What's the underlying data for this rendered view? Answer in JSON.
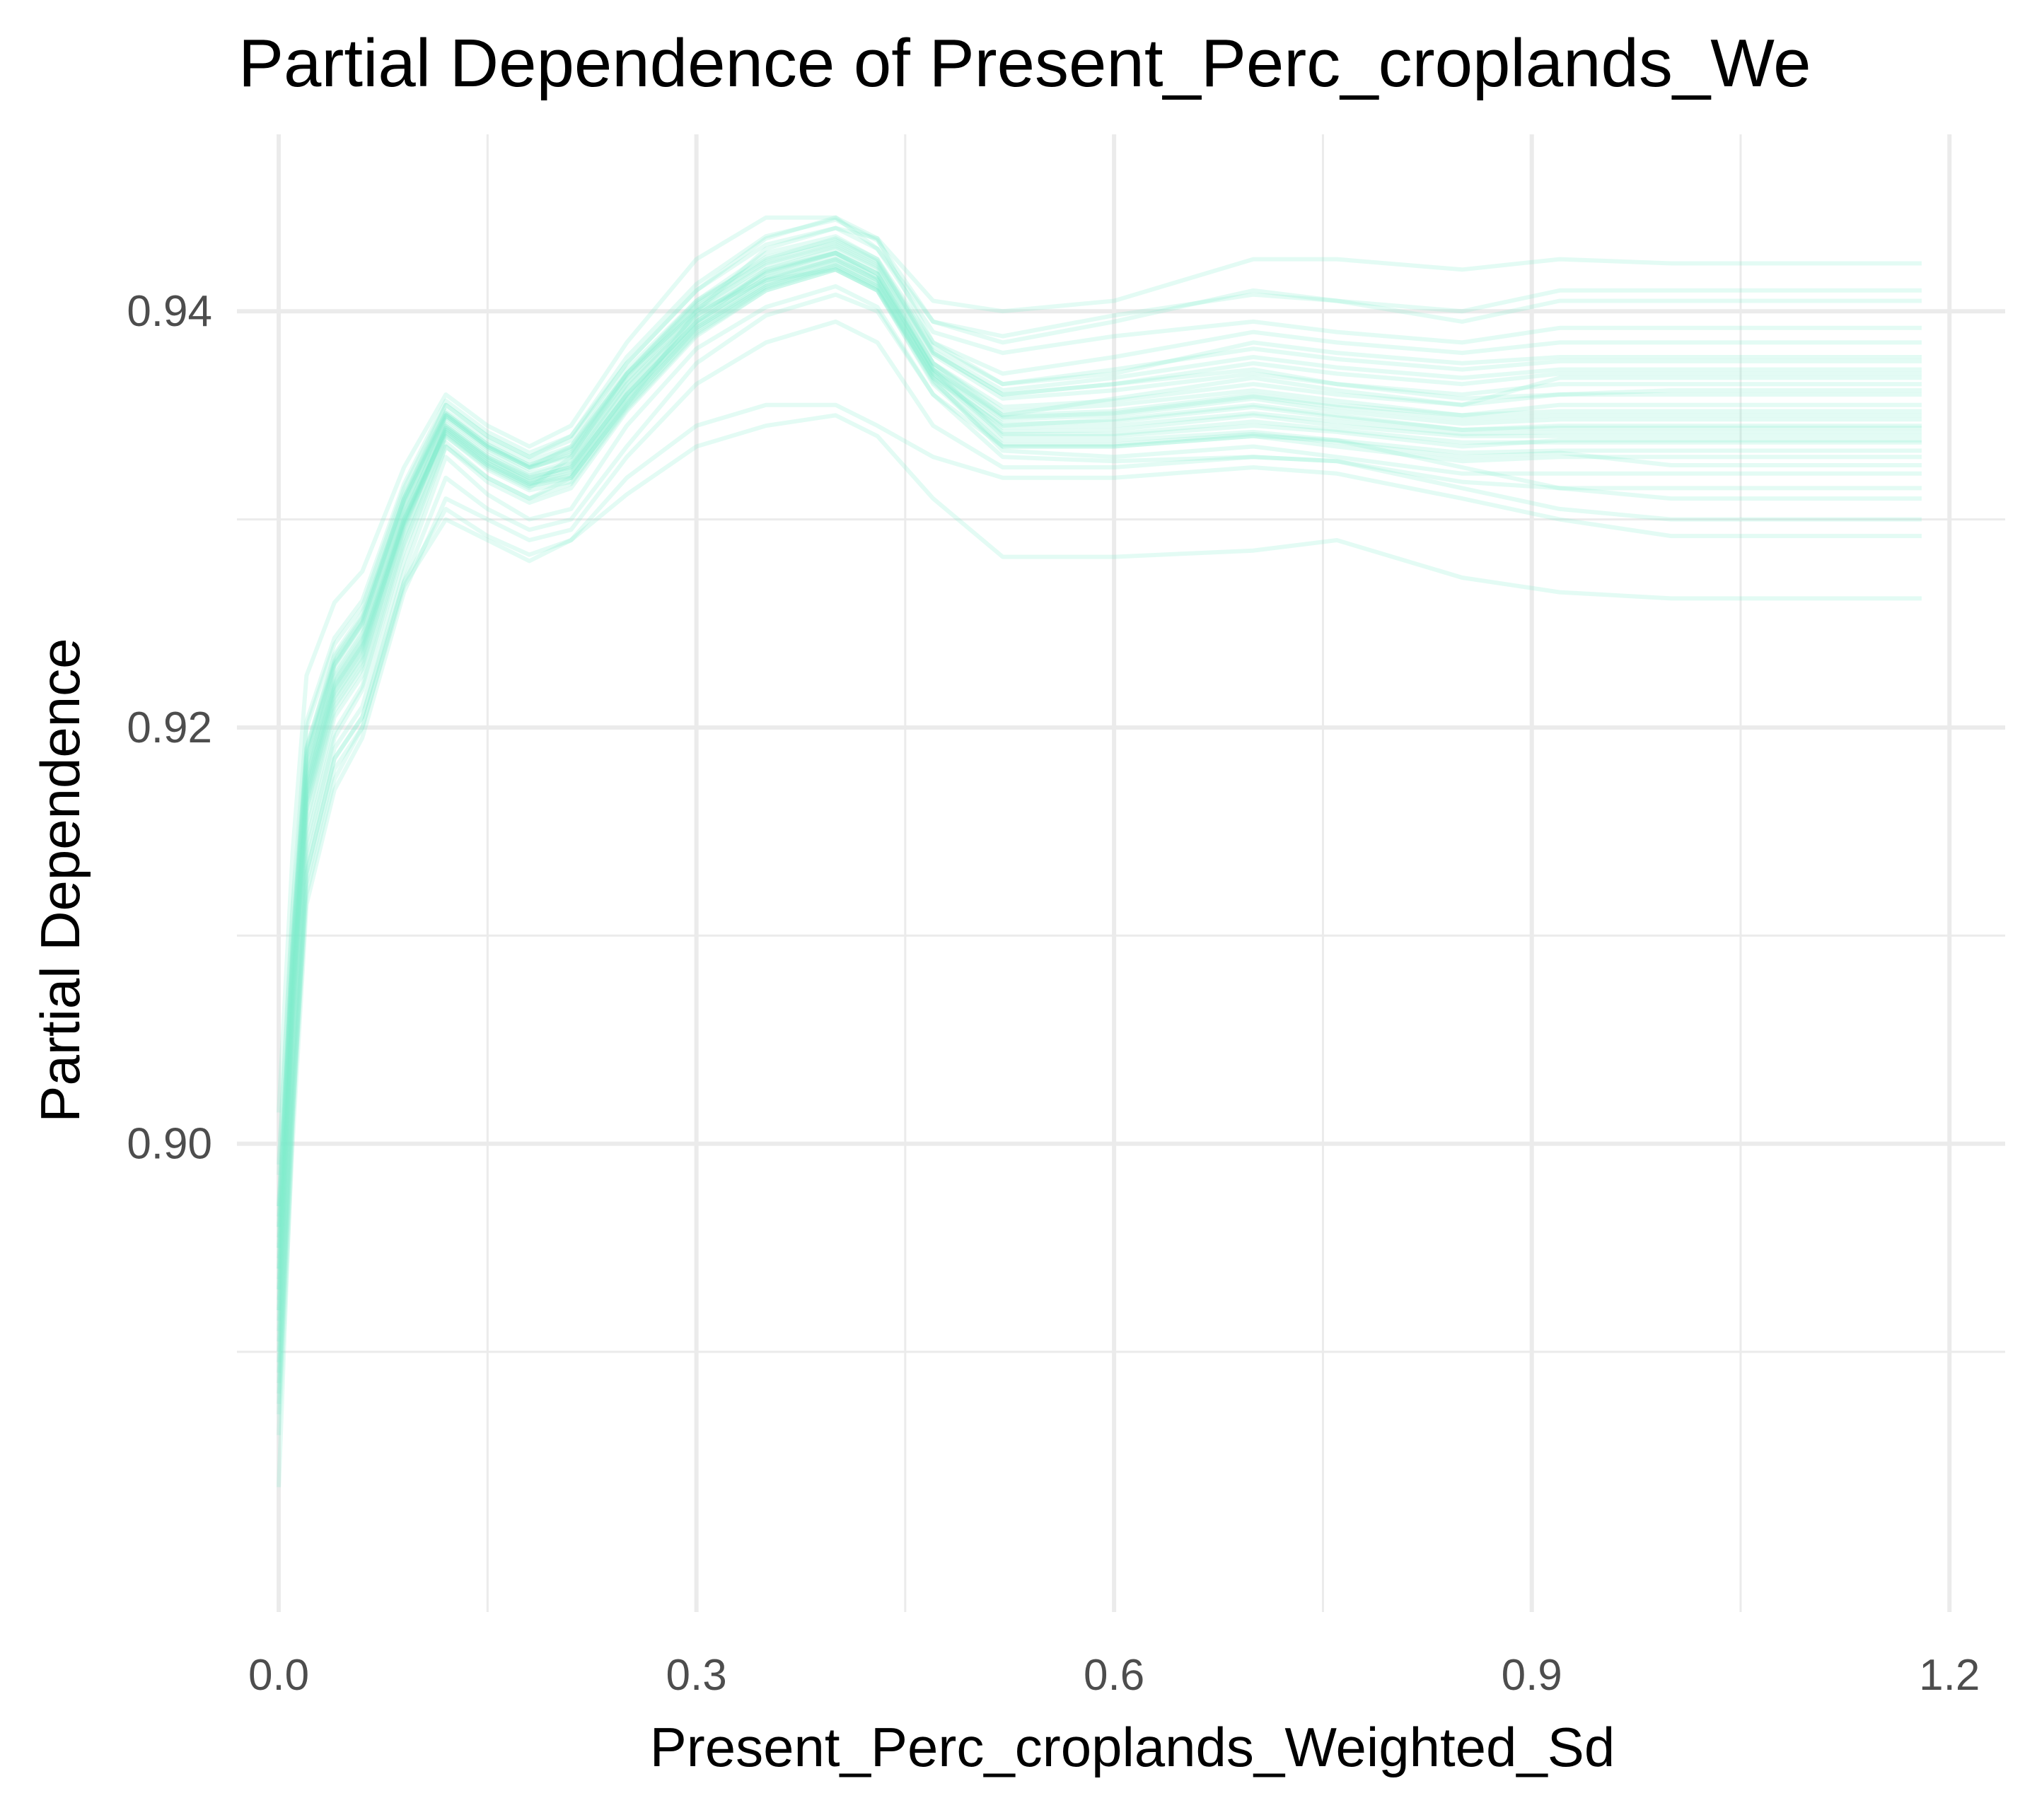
{
  "chart_data": {
    "type": "line",
    "title": "Partial Dependence of Present_Perc_croplands_We",
    "xlabel": "Present_Perc_croplands_Weighted_Sd",
    "ylabel": "Partial Dependence",
    "xlim": [
      -0.03,
      1.24
    ],
    "ylim": [
      0.8775,
      0.9485
    ],
    "x_ticks": [
      0.0,
      0.3,
      0.6,
      0.9,
      1.2
    ],
    "x_tick_labels": [
      "0.0",
      "0.3",
      "0.6",
      "0.9",
      "1.2"
    ],
    "y_ticks": [
      0.9,
      0.92,
      0.94
    ],
    "y_tick_labels": [
      "0.90",
      "0.92",
      "0.94"
    ],
    "grid": true,
    "legend": "none",
    "line_color": "#7FEFCB",
    "line_opacity": 0.22,
    "x": [
      0.0,
      0.01,
      0.02,
      0.04,
      0.06,
      0.09,
      0.12,
      0.15,
      0.18,
      0.21,
      0.25,
      0.3,
      0.35,
      0.4,
      0.43,
      0.47,
      0.52,
      0.6,
      0.7,
      0.76,
      0.85,
      0.92,
      1.0,
      1.08,
      1.18
    ],
    "series": [
      {
        "values": [
          0.8835,
          0.901,
          0.9135,
          0.919,
          0.921,
          0.928,
          0.9335,
          0.932,
          0.931,
          0.932,
          0.9355,
          0.94,
          0.943,
          0.944,
          0.9435,
          0.9385,
          0.9365,
          0.937,
          0.9385,
          0.938,
          0.9375,
          0.9378,
          0.9378,
          0.9378,
          0.9378
        ]
      },
      {
        "values": [
          0.893,
          0.907,
          0.9175,
          0.923,
          0.925,
          0.931,
          0.9355,
          0.934,
          0.933,
          0.934,
          0.9375,
          0.941,
          0.9435,
          0.9445,
          0.943,
          0.9395,
          0.9385,
          0.9395,
          0.941,
          0.9405,
          0.9395,
          0.9405,
          0.9405,
          0.9405,
          0.9405
        ]
      },
      {
        "values": [
          0.89,
          0.904,
          0.915,
          0.9205,
          0.9225,
          0.929,
          0.934,
          0.9325,
          0.9315,
          0.933,
          0.937,
          0.9405,
          0.9425,
          0.9435,
          0.9425,
          0.938,
          0.936,
          0.9365,
          0.9372,
          0.9365,
          0.9358,
          0.936,
          0.9362,
          0.9362,
          0.9362
        ]
      },
      {
        "values": [
          0.891,
          0.905,
          0.916,
          0.921,
          0.923,
          0.9295,
          0.9345,
          0.933,
          0.932,
          0.9325,
          0.936,
          0.9395,
          0.942,
          0.943,
          0.942,
          0.9375,
          0.935,
          0.9352,
          0.936,
          0.9355,
          0.935,
          0.9352,
          0.9352,
          0.9352,
          0.9352
        ]
      },
      {
        "values": [
          0.895,
          0.9085,
          0.918,
          0.9225,
          0.9245,
          0.9305,
          0.935,
          0.9335,
          0.9325,
          0.9335,
          0.937,
          0.94,
          0.9415,
          0.942,
          0.941,
          0.9368,
          0.9345,
          0.9348,
          0.9355,
          0.935,
          0.9343,
          0.9345,
          0.9345,
          0.9345,
          0.9345
        ]
      },
      {
        "values": [
          0.892,
          0.906,
          0.9165,
          0.9215,
          0.9235,
          0.93,
          0.9348,
          0.9333,
          0.9322,
          0.9328,
          0.9365,
          0.9398,
          0.9418,
          0.9428,
          0.9418,
          0.9372,
          0.934,
          0.934,
          0.9345,
          0.9342,
          0.9335,
          0.9338,
          0.9338,
          0.9338,
          0.9338
        ]
      },
      {
        "values": [
          0.889,
          0.903,
          0.914,
          0.9195,
          0.9218,
          0.9285,
          0.9335,
          0.9318,
          0.9308,
          0.9315,
          0.9352,
          0.9388,
          0.941,
          0.942,
          0.941,
          0.9365,
          0.9335,
          0.9335,
          0.934,
          0.9335,
          0.9328,
          0.933,
          0.933,
          0.933,
          0.933
        ]
      },
      {
        "values": [
          0.894,
          0.9075,
          0.9172,
          0.922,
          0.924,
          0.93,
          0.9342,
          0.9326,
          0.9316,
          0.932,
          0.9355,
          0.9392,
          0.9412,
          0.9422,
          0.9412,
          0.9367,
          0.9333,
          0.933,
          0.9335,
          0.933,
          0.9322,
          0.9322,
          0.9322,
          0.9322,
          0.9322
        ]
      },
      {
        "values": [
          0.896,
          0.909,
          0.9185,
          0.923,
          0.925,
          0.9308,
          0.935,
          0.9335,
          0.9325,
          0.933,
          0.9365,
          0.94,
          0.942,
          0.9428,
          0.9416,
          0.9372,
          0.935,
          0.9358,
          0.9368,
          0.9362,
          0.9355,
          0.9368,
          0.9368,
          0.9368,
          0.9368
        ]
      },
      {
        "values": [
          0.897,
          0.91,
          0.919,
          0.9235,
          0.9255,
          0.9312,
          0.9352,
          0.9338,
          0.9328,
          0.9335,
          0.9372,
          0.9405,
          0.9428,
          0.9436,
          0.9425,
          0.9385,
          0.937,
          0.9378,
          0.939,
          0.9385,
          0.938,
          0.9385,
          0.9385,
          0.9385,
          0.9385
        ]
      },
      {
        "values": [
          0.888,
          0.902,
          0.913,
          0.9185,
          0.9205,
          0.9275,
          0.933,
          0.9312,
          0.93,
          0.9305,
          0.9345,
          0.9382,
          0.9402,
          0.9412,
          0.9402,
          0.936,
          0.933,
          0.9328,
          0.933,
          0.9328,
          0.9318,
          0.9315,
          0.9315,
          0.9315,
          0.9315
        ]
      },
      {
        "values": [
          0.8985,
          0.911,
          0.92,
          0.924,
          0.9258,
          0.9315,
          0.9355,
          0.934,
          0.933,
          0.9338,
          0.9375,
          0.941,
          0.9432,
          0.944,
          0.943,
          0.939,
          0.938,
          0.9388,
          0.9395,
          0.939,
          0.9385,
          0.9392,
          0.9392,
          0.9392,
          0.9392
        ]
      },
      {
        "values": [
          0.8945,
          0.908,
          0.9175,
          0.9222,
          0.9242,
          0.9302,
          0.9345,
          0.933,
          0.932,
          0.9325,
          0.936,
          0.9395,
          0.9416,
          0.9425,
          0.9415,
          0.9372,
          0.9348,
          0.935,
          0.9358,
          0.9352,
          0.9346,
          0.9348,
          0.9348,
          0.9348,
          0.9348
        ]
      },
      {
        "values": [
          0.8925,
          0.9065,
          0.9168,
          0.9218,
          0.9238,
          0.9298,
          0.9343,
          0.9328,
          0.9318,
          0.9322,
          0.9358,
          0.9393,
          0.9414,
          0.9424,
          0.9414,
          0.937,
          0.9342,
          0.9343,
          0.935,
          0.9345,
          0.934,
          0.934,
          0.934,
          0.934,
          0.934
        ]
      },
      {
        "values": [
          0.8905,
          0.9045,
          0.9155,
          0.9208,
          0.9228,
          0.9292,
          0.934,
          0.9324,
          0.9314,
          0.9318,
          0.9354,
          0.939,
          0.9411,
          0.9421,
          0.9411,
          0.9368,
          0.9338,
          0.9338,
          0.9342,
          0.9338,
          0.9332,
          0.9333,
          0.9333,
          0.9333,
          0.9333
        ]
      },
      {
        "values": [
          0.8915,
          0.9055,
          0.9162,
          0.9212,
          0.9232,
          0.9296,
          0.9344,
          0.9329,
          0.9318,
          0.9326,
          0.9362,
          0.9397,
          0.9418,
          0.9428,
          0.9418,
          0.9375,
          0.9352,
          0.9355,
          0.9362,
          0.9357,
          0.935,
          0.9355,
          0.9355,
          0.9355,
          0.9355
        ]
      },
      {
        "values": [
          0.8955,
          0.9088,
          0.9182,
          0.9228,
          0.9248,
          0.9306,
          0.9349,
          0.9334,
          0.9324,
          0.9332,
          0.9368,
          0.9402,
          0.9423,
          0.9432,
          0.9422,
          0.938,
          0.936,
          0.9365,
          0.9375,
          0.937,
          0.9365,
          0.937,
          0.937,
          0.937,
          0.937
        ]
      },
      {
        "values": [
          0.8935,
          0.9072,
          0.917,
          0.9219,
          0.9239,
          0.9299,
          0.9343,
          0.9327,
          0.9317,
          0.9323,
          0.9359,
          0.9394,
          0.9415,
          0.9425,
          0.9415,
          0.9371,
          0.9346,
          0.9347,
          0.9354,
          0.9349,
          0.9343,
          0.9344,
          0.9344,
          0.9344,
          0.9344
        ]
      },
      {
        "values": [
          0.8965,
          0.9095,
          0.9188,
          0.9232,
          0.9252,
          0.931,
          0.9351,
          0.9336,
          0.9326,
          0.9334,
          0.937,
          0.9404,
          0.9426,
          0.9434,
          0.9424,
          0.9383,
          0.9365,
          0.9372,
          0.9382,
          0.9377,
          0.9372,
          0.9376,
          0.9376,
          0.9376,
          0.9376
        ]
      },
      {
        "values": [
          0.8895,
          0.9035,
          0.9145,
          0.9198,
          0.922,
          0.9288,
          0.9337,
          0.932,
          0.931,
          0.9317,
          0.9353,
          0.9389,
          0.941,
          0.942,
          0.941,
          0.9366,
          0.9336,
          0.9336,
          0.9341,
          0.9337,
          0.933,
          0.9332,
          0.9326,
          0.9326,
          0.9326
        ]
      },
      {
        "values": [
          0.893,
          0.9068,
          0.9168,
          0.9217,
          0.9237,
          0.9298,
          0.9342,
          0.9327,
          0.9317,
          0.9321,
          0.9357,
          0.9392,
          0.9413,
          0.9423,
          0.9413,
          0.937,
          0.9344,
          0.9345,
          0.9351,
          0.9347,
          0.9341,
          0.9342,
          0.9342,
          0.9342,
          0.9342
        ]
      },
      {
        "values": [
          0.895,
          0.9082,
          0.9178,
          0.9224,
          0.9244,
          0.9303,
          0.9346,
          0.9331,
          0.9321,
          0.9327,
          0.9363,
          0.9398,
          0.9419,
          0.9428,
          0.9418,
          0.9375,
          0.9354,
          0.9357,
          0.9365,
          0.936,
          0.9355,
          0.936,
          0.936,
          0.936,
          0.936
        ]
      },
      {
        "values": [
          0.899,
          0.9115,
          0.9203,
          0.9243,
          0.9261,
          0.9317,
          0.9357,
          0.9342,
          0.9332,
          0.934,
          0.9378,
          0.9413,
          0.9436,
          0.9444,
          0.9434,
          0.9395,
          0.9388,
          0.9398,
          0.9408,
          0.9405,
          0.94,
          0.941,
          0.941,
          0.941,
          0.941
        ]
      },
      {
        "values": [
          0.896,
          0.9092,
          0.9186,
          0.9231,
          0.9251,
          0.9309,
          0.935,
          0.9335,
          0.9325,
          0.9331,
          0.9367,
          0.9401,
          0.9422,
          0.9431,
          0.9421,
          0.9379,
          0.9358,
          0.9362,
          0.937,
          0.9365,
          0.936,
          0.9365,
          0.9365,
          0.9365,
          0.9365
        ]
      },
      {
        "values": [
          0.892,
          0.9062,
          0.9164,
          0.9214,
          0.9234,
          0.9297,
          0.9341,
          0.9326,
          0.9316,
          0.932,
          0.9356,
          0.9391,
          0.9412,
          0.9422,
          0.9412,
          0.9369,
          0.9341,
          0.9341,
          0.9347,
          0.9343,
          0.9337,
          0.9337,
          0.9337,
          0.9337,
          0.9337
        ]
      },
      {
        "values": [
          0.887,
          0.901,
          0.9125,
          0.918,
          0.92,
          0.927,
          0.932,
          0.9305,
          0.9295,
          0.93,
          0.9335,
          0.9375,
          0.9398,
          0.9408,
          0.94,
          0.936,
          0.9335,
          0.9335,
          0.934,
          0.9338,
          0.9325,
          0.9315,
          0.931,
          0.931,
          0.931
        ]
      },
      {
        "values": [
          0.886,
          0.9,
          0.9115,
          0.917,
          0.9195,
          0.9265,
          0.931,
          0.93,
          0.929,
          0.9295,
          0.933,
          0.9365,
          0.9385,
          0.9395,
          0.9385,
          0.9345,
          0.9325,
          0.9325,
          0.933,
          0.9328,
          0.9315,
          0.9305,
          0.93,
          0.93,
          0.93
        ]
      },
      {
        "values": [
          0.8875,
          0.9015,
          0.912,
          0.9175,
          0.92,
          0.9268,
          0.93,
          0.929,
          0.928,
          0.929,
          0.932,
          0.9345,
          0.9355,
          0.9355,
          0.9345,
          0.933,
          0.932,
          0.932,
          0.9325,
          0.9322,
          0.931,
          0.93,
          0.9292,
          0.9292,
          0.9292
        ]
      },
      {
        "values": [
          0.8885,
          0.9025,
          0.913,
          0.9185,
          0.9205,
          0.927,
          0.9305,
          0.9292,
          0.9283,
          0.929,
          0.9312,
          0.9335,
          0.9345,
          0.935,
          0.934,
          0.931,
          0.9282,
          0.9282,
          0.9285,
          0.929,
          0.9272,
          0.9265,
          0.9262,
          0.9262,
          0.9262
        ]
      },
      {
        "values": [
          0.9015,
          0.914,
          0.9225,
          0.926,
          0.9275,
          0.9325,
          0.936,
          0.9345,
          0.9335,
          0.9345,
          0.9385,
          0.9425,
          0.9445,
          0.9445,
          0.9435,
          0.9405,
          0.94,
          0.9405,
          0.9425,
          0.9425,
          0.942,
          0.9425,
          0.9423,
          0.9423,
          0.9423
        ]
      },
      {
        "values": [
          0.897,
          0.9098,
          0.919,
          0.9234,
          0.9253,
          0.931,
          0.9351,
          0.9336,
          0.9326,
          0.9333,
          0.9369,
          0.9403,
          0.9424,
          0.9433,
          0.9423,
          0.9381,
          0.9362,
          0.9368,
          0.9378,
          0.9373,
          0.9368,
          0.9372,
          0.9372,
          0.9372,
          0.9372
        ]
      },
      {
        "values": [
          0.894,
          0.9076,
          0.9172,
          0.9221,
          0.9241,
          0.93,
          0.9344,
          0.9329,
          0.9319,
          0.9324,
          0.936,
          0.9395,
          0.9416,
          0.9426,
          0.9416,
          0.9373,
          0.9349,
          0.9351,
          0.9359,
          0.9354,
          0.9348,
          0.935,
          0.935,
          0.935,
          0.935
        ]
      }
    ]
  }
}
